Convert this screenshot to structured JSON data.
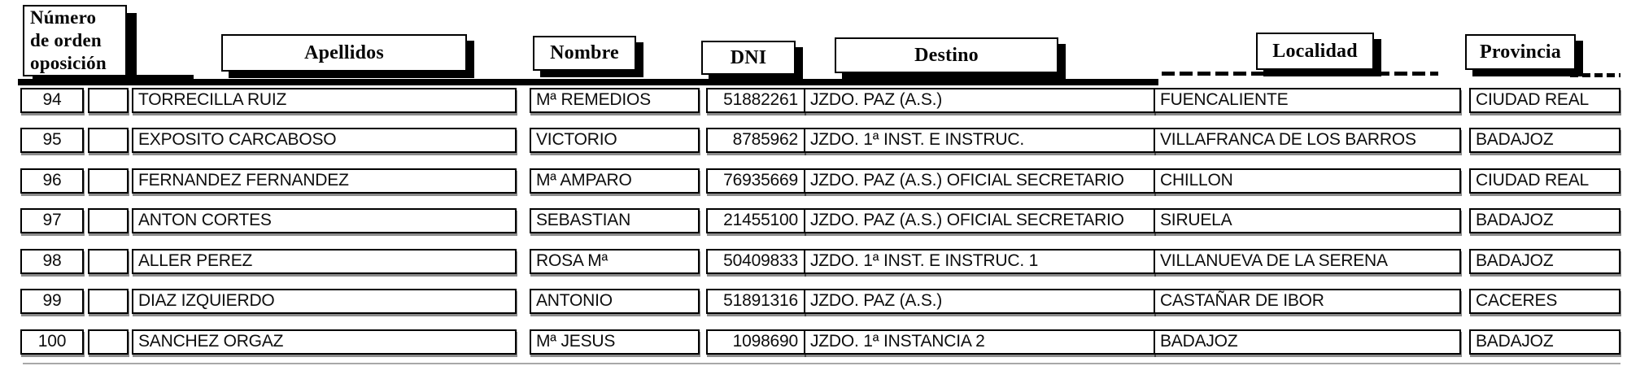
{
  "colors": {
    "ink": "#000000",
    "paper": "#ffffff"
  },
  "table": {
    "headers": {
      "orden_lines": [
        "Número",
        "de orden",
        "oposición"
      ],
      "apellidos": "Apellidos",
      "nombre": "Nombre",
      "dni": "DNI",
      "destino": "Destino",
      "localidad": "Localidad",
      "provincia": "Provincia"
    },
    "rows": [
      {
        "orden": "94",
        "apellidos": "TORRECILLA RUIZ",
        "nombre": "Mª REMEDIOS",
        "dni": "51882261",
        "destino": "JZDO. PAZ (A.S.)",
        "localidad": "FUENCALIENTE",
        "provincia": "CIUDAD REAL"
      },
      {
        "orden": "95",
        "apellidos": "EXPOSITO CARCABOSO",
        "nombre": "VICTORIO",
        "dni": "8785962",
        "destino": "JZDO. 1ª INST. E INSTRUC.",
        "localidad": "VILLAFRANCA DE LOS BARROS",
        "provincia": "BADAJOZ"
      },
      {
        "orden": "96",
        "apellidos": "FERNANDEZ FERNANDEZ",
        "nombre": "Mª AMPARO",
        "dni": "76935669",
        "destino": "JZDO. PAZ (A.S.) OFICIAL SECRETARIO",
        "localidad": "CHILLON",
        "provincia": "CIUDAD REAL"
      },
      {
        "orden": "97",
        "apellidos": "ANTON CORTES",
        "nombre": "SEBASTIAN",
        "dni": "21455100",
        "destino": "JZDO. PAZ (A.S.) OFICIAL SECRETARIO",
        "localidad": "SIRUELA",
        "provincia": "BADAJOZ"
      },
      {
        "orden": "98",
        "apellidos": "ALLER PEREZ",
        "nombre": "ROSA Mª",
        "dni": "50409833",
        "destino": "JZDO. 1ª INST. E INSTRUC. 1",
        "localidad": "VILLANUEVA DE LA SERENA",
        "provincia": "BADAJOZ"
      },
      {
        "orden": "99",
        "apellidos": "DIAZ IZQUIERDO",
        "nombre": "ANTONIO",
        "dni": "51891316",
        "destino": "JZDO. PAZ (A.S.)",
        "localidad": "CASTAÑAR DE IBOR",
        "provincia": "CACERES"
      },
      {
        "orden": "100",
        "apellidos": "SANCHEZ ORGAZ",
        "nombre": "Mª JESUS",
        "dni": "1098690",
        "destino": "JZDO. 1ª INSTANCIA 2",
        "localidad": "BADAJOZ",
        "provincia": "BADAJOZ"
      }
    ]
  }
}
